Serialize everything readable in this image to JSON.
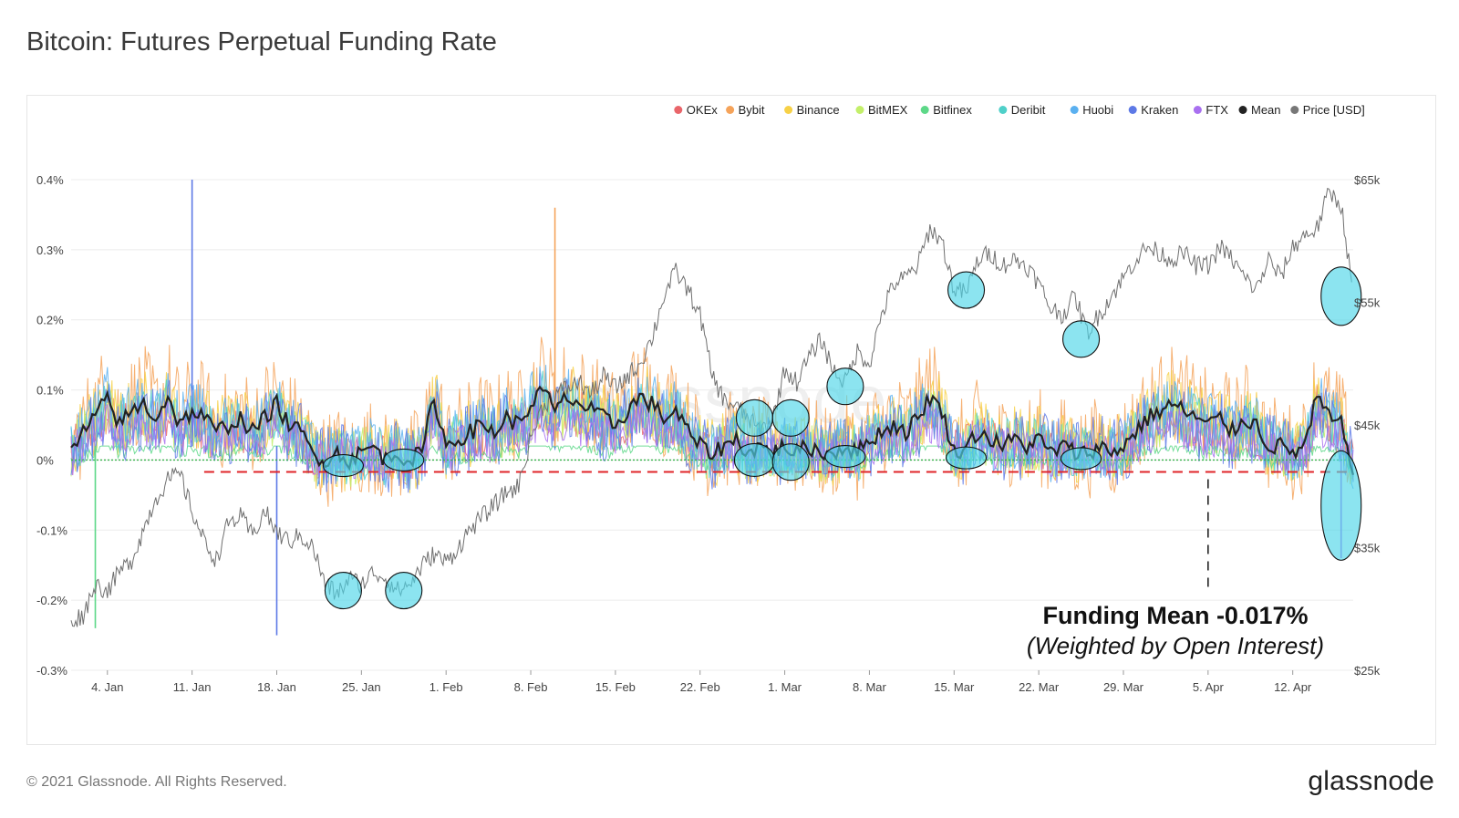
{
  "page": {
    "title": "Bitcoin: Futures Perpetual Funding Rate",
    "footer_copyright": "© 2021 Glassnode. All Rights Reserved.",
    "brand": "glassnode",
    "watermark": "glassnode"
  },
  "annotation": {
    "main": "Funding Mean -0.017%",
    "sub": "(Weighted by Open Interest)",
    "line_color": "#e0262a"
  },
  "colors": {
    "OKEx": "#e9656a",
    "Bybit": "#f5a35a",
    "Binance": "#f7d147",
    "BitMEX": "#c3ef6a",
    "Bitfinex": "#5dd888",
    "Deribit": "#4fd0c9",
    "Huobi": "#5ab0f0",
    "Kraken": "#5d79e6",
    "FTX": "#a970f0",
    "Mean": "#222222",
    "Price": "#777777",
    "highlight": "#4fd6e8"
  },
  "chart_data": {
    "type": "line",
    "title": "Bitcoin: Futures Perpetual Funding Rate",
    "legend_position": "top-right",
    "legend": [
      "OKEx",
      "Bybit",
      "Binance",
      "BitMEX",
      "Bitfinex",
      "Deribit",
      "Huobi",
      "Kraken",
      "FTX",
      "Mean",
      "Price [USD]"
    ],
    "x_ticks": [
      "4. Jan",
      "11. Jan",
      "18. Jan",
      "25. Jan",
      "1. Feb",
      "8. Feb",
      "15. Feb",
      "22. Feb",
      "1. Mar",
      "8. Mar",
      "15. Mar",
      "22. Mar",
      "29. Mar",
      "5. Apr",
      "12. Apr"
    ],
    "x_range_days": [
      0,
      106
    ],
    "x_tick_days": [
      3,
      10,
      17,
      24,
      31,
      38,
      45,
      52,
      59,
      66,
      73,
      80,
      87,
      94,
      101
    ],
    "y_left": {
      "ticks": [
        "-0.3%",
        "-0.2%",
        "-0.1%",
        "0%",
        "0.1%",
        "0.2%",
        "0.3%",
        "0.4%"
      ],
      "tick_values": [
        -0.3,
        -0.2,
        -0.1,
        0,
        0.1,
        0.2,
        0.3,
        0.4
      ],
      "range": [
        -0.3,
        0.4
      ],
      "unit": "%"
    },
    "y_right": {
      "ticks": [
        "$25k",
        "$35k",
        "$45k",
        "$55k",
        "$65k"
      ],
      "tick_values": [
        25000,
        35000,
        45000,
        55000,
        65000
      ],
      "range": [
        25000,
        65000
      ],
      "unit": "USD"
    },
    "funding_mean_reference": -0.017,
    "annotation_marker_day": 94,
    "price": {
      "name": "Price [USD]",
      "days": [
        0,
        1,
        2,
        3,
        4,
        5,
        6,
        7,
        8,
        9,
        10,
        11,
        12,
        13,
        14,
        15,
        16,
        17,
        18,
        19,
        20,
        21,
        22,
        23,
        24,
        25,
        26,
        27,
        28,
        29,
        30,
        31,
        32,
        33,
        34,
        35,
        36,
        37,
        38,
        39,
        40,
        41,
        42,
        43,
        44,
        45,
        46,
        47,
        48,
        49,
        50,
        51,
        52,
        53,
        54,
        55,
        56,
        57,
        58,
        59,
        60,
        61,
        62,
        63,
        64,
        65,
        66,
        67,
        68,
        69,
        70,
        71,
        72,
        73,
        74,
        75,
        76,
        77,
        78,
        79,
        80,
        81,
        82,
        83,
        84,
        85,
        86,
        87,
        88,
        89,
        90,
        91,
        92,
        93,
        94,
        95,
        96,
        97,
        98,
        99,
        100,
        101,
        102,
        103,
        104,
        105,
        106
      ],
      "values": [
        29000,
        29500,
        32000,
        31500,
        33000,
        34000,
        36500,
        39000,
        40500,
        41000,
        38000,
        35500,
        34000,
        37000,
        37500,
        36000,
        38000,
        36200,
        35500,
        36000,
        35000,
        32000,
        31200,
        32500,
        32000,
        33000,
        32500,
        31500,
        32000,
        33500,
        34500,
        33800,
        35000,
        36500,
        37500,
        38500,
        39500,
        40000,
        44000,
        46500,
        47500,
        48000,
        48500,
        47500,
        49000,
        48000,
        49000,
        50000,
        52000,
        55500,
        57500,
        56000,
        54000,
        49000,
        47000,
        46500,
        45500,
        44500,
        45500,
        49500,
        48500,
        50500,
        52000,
        49500,
        48500,
        51000,
        50000,
        54000,
        56500,
        57000,
        58000,
        61000,
        60000,
        56000,
        55800,
        58500,
        59000,
        58000,
        58500,
        58000,
        56500,
        54500,
        54000,
        55500,
        52500,
        54000,
        55500,
        57000,
        58500,
        59500,
        59000,
        58500,
        59000,
        58000,
        58000,
        59500,
        58500,
        57000,
        56000,
        58500,
        57000,
        59500,
        60500,
        61000,
        64000,
        63000,
        55500
      ]
    },
    "mean": {
      "name": "Mean",
      "days": [
        0,
        1,
        2,
        3,
        4,
        5,
        6,
        7,
        8,
        9,
        10,
        11,
        12,
        13,
        14,
        15,
        16,
        17,
        18,
        19,
        20,
        21,
        22,
        23,
        24,
        25,
        26,
        27,
        28,
        29,
        30,
        31,
        32,
        33,
        34,
        35,
        36,
        37,
        38,
        39,
        40,
        41,
        42,
        43,
        44,
        45,
        46,
        47,
        48,
        49,
        50,
        51,
        52,
        53,
        54,
        55,
        56,
        57,
        58,
        59,
        60,
        61,
        62,
        63,
        64,
        65,
        66,
        67,
        68,
        69,
        70,
        71,
        72,
        73,
        74,
        75,
        76,
        77,
        78,
        79,
        80,
        81,
        82,
        83,
        84,
        85,
        86,
        87,
        88,
        89,
        90,
        91,
        92,
        93,
        94,
        95,
        96,
        97,
        98,
        99,
        100,
        101,
        102,
        103,
        104,
        105,
        106
      ],
      "values": [
        0.01,
        0.04,
        0.06,
        0.09,
        0.05,
        0.07,
        0.08,
        0.06,
        0.09,
        0.05,
        0.07,
        0.06,
        0.04,
        0.05,
        0.06,
        0.04,
        0.06,
        0.08,
        0.05,
        0.04,
        0.01,
        0.0,
        0.01,
        0.0,
        0.01,
        0.02,
        0.0,
        0.01,
        0.0,
        0.01,
        0.09,
        0.02,
        0.03,
        0.04,
        0.05,
        0.04,
        0.06,
        0.05,
        0.08,
        0.1,
        0.07,
        0.09,
        0.08,
        0.07,
        0.06,
        0.05,
        0.07,
        0.09,
        0.08,
        0.06,
        0.07,
        0.04,
        0.02,
        0.01,
        0.02,
        0.03,
        0.01,
        0.02,
        0.01,
        0.02,
        0.01,
        0.02,
        0.01,
        0.01,
        0.02,
        0.01,
        0.03,
        0.04,
        0.05,
        0.04,
        0.06,
        0.09,
        0.07,
        0.01,
        0.02,
        0.04,
        0.03,
        0.02,
        0.03,
        0.02,
        0.03,
        0.01,
        0.02,
        0.01,
        0.01,
        0.02,
        0.01,
        0.02,
        0.04,
        0.06,
        0.07,
        0.08,
        0.07,
        0.06,
        0.05,
        0.06,
        0.04,
        0.06,
        0.05,
        0.02,
        0.02,
        0.01,
        0.02,
        0.09,
        0.06,
        0.05,
        -0.01
      ]
    },
    "exchange_series_peaks": [
      {
        "name": "Bybit",
        "max": 0.36,
        "day": 40
      },
      {
        "name": "Kraken",
        "max": 0.4,
        "day": 10
      },
      {
        "name": "Kraken",
        "min": -0.25,
        "day": 17
      },
      {
        "name": "Bitfinex",
        "min": -0.24,
        "day": 2
      },
      {
        "name": "FTX",
        "min": -0.14,
        "day": 105
      }
    ],
    "exchange_series": [
      {
        "name": "OKEx",
        "base": 0.04,
        "amp": 0.035
      },
      {
        "name": "Bybit",
        "base": 0.06,
        "amp": 0.07
      },
      {
        "name": "Binance",
        "base": 0.05,
        "amp": 0.05
      },
      {
        "name": "BitMEX",
        "base": 0.04,
        "amp": 0.04
      },
      {
        "name": "Bitfinex",
        "base": 0.0,
        "amp": 0.03
      },
      {
        "name": "Deribit",
        "base": 0.045,
        "amp": 0.04
      },
      {
        "name": "Huobi",
        "base": 0.05,
        "amp": 0.045
      },
      {
        "name": "Kraken",
        "base": 0.04,
        "amp": 0.05
      },
      {
        "name": "FTX",
        "base": 0.03,
        "amp": 0.03
      }
    ],
    "highlighted_regions": [
      {
        "axis": "price",
        "day": 22.5,
        "value": 31500
      },
      {
        "axis": "price",
        "day": 27.5,
        "value": 31500
      },
      {
        "axis": "price",
        "day": 74,
        "value": 56000
      },
      {
        "axis": "price",
        "day": 83.5,
        "value": 52000
      },
      {
        "axis": "price",
        "day": 105,
        "value": 55500
      },
      {
        "axis": "funding",
        "day": 22.5,
        "value": -0.008
      },
      {
        "axis": "funding",
        "day": 27.5,
        "value": 0.0
      },
      {
        "axis": "funding",
        "day": 56.5,
        "value": 0.06
      },
      {
        "axis": "funding",
        "day": 59.5,
        "value": 0.06
      },
      {
        "axis": "funding",
        "day": 56.5,
        "value": 0.0
      },
      {
        "axis": "funding",
        "day": 59.5,
        "value": -0.003
      },
      {
        "axis": "funding",
        "day": 64,
        "value": 0.105
      },
      {
        "axis": "funding",
        "day": 64,
        "value": 0.005
      },
      {
        "axis": "funding",
        "day": 74,
        "value": 0.003
      },
      {
        "axis": "funding",
        "day": 83.5,
        "value": 0.002
      },
      {
        "axis": "funding",
        "day": 105,
        "value": -0.065
      }
    ]
  }
}
